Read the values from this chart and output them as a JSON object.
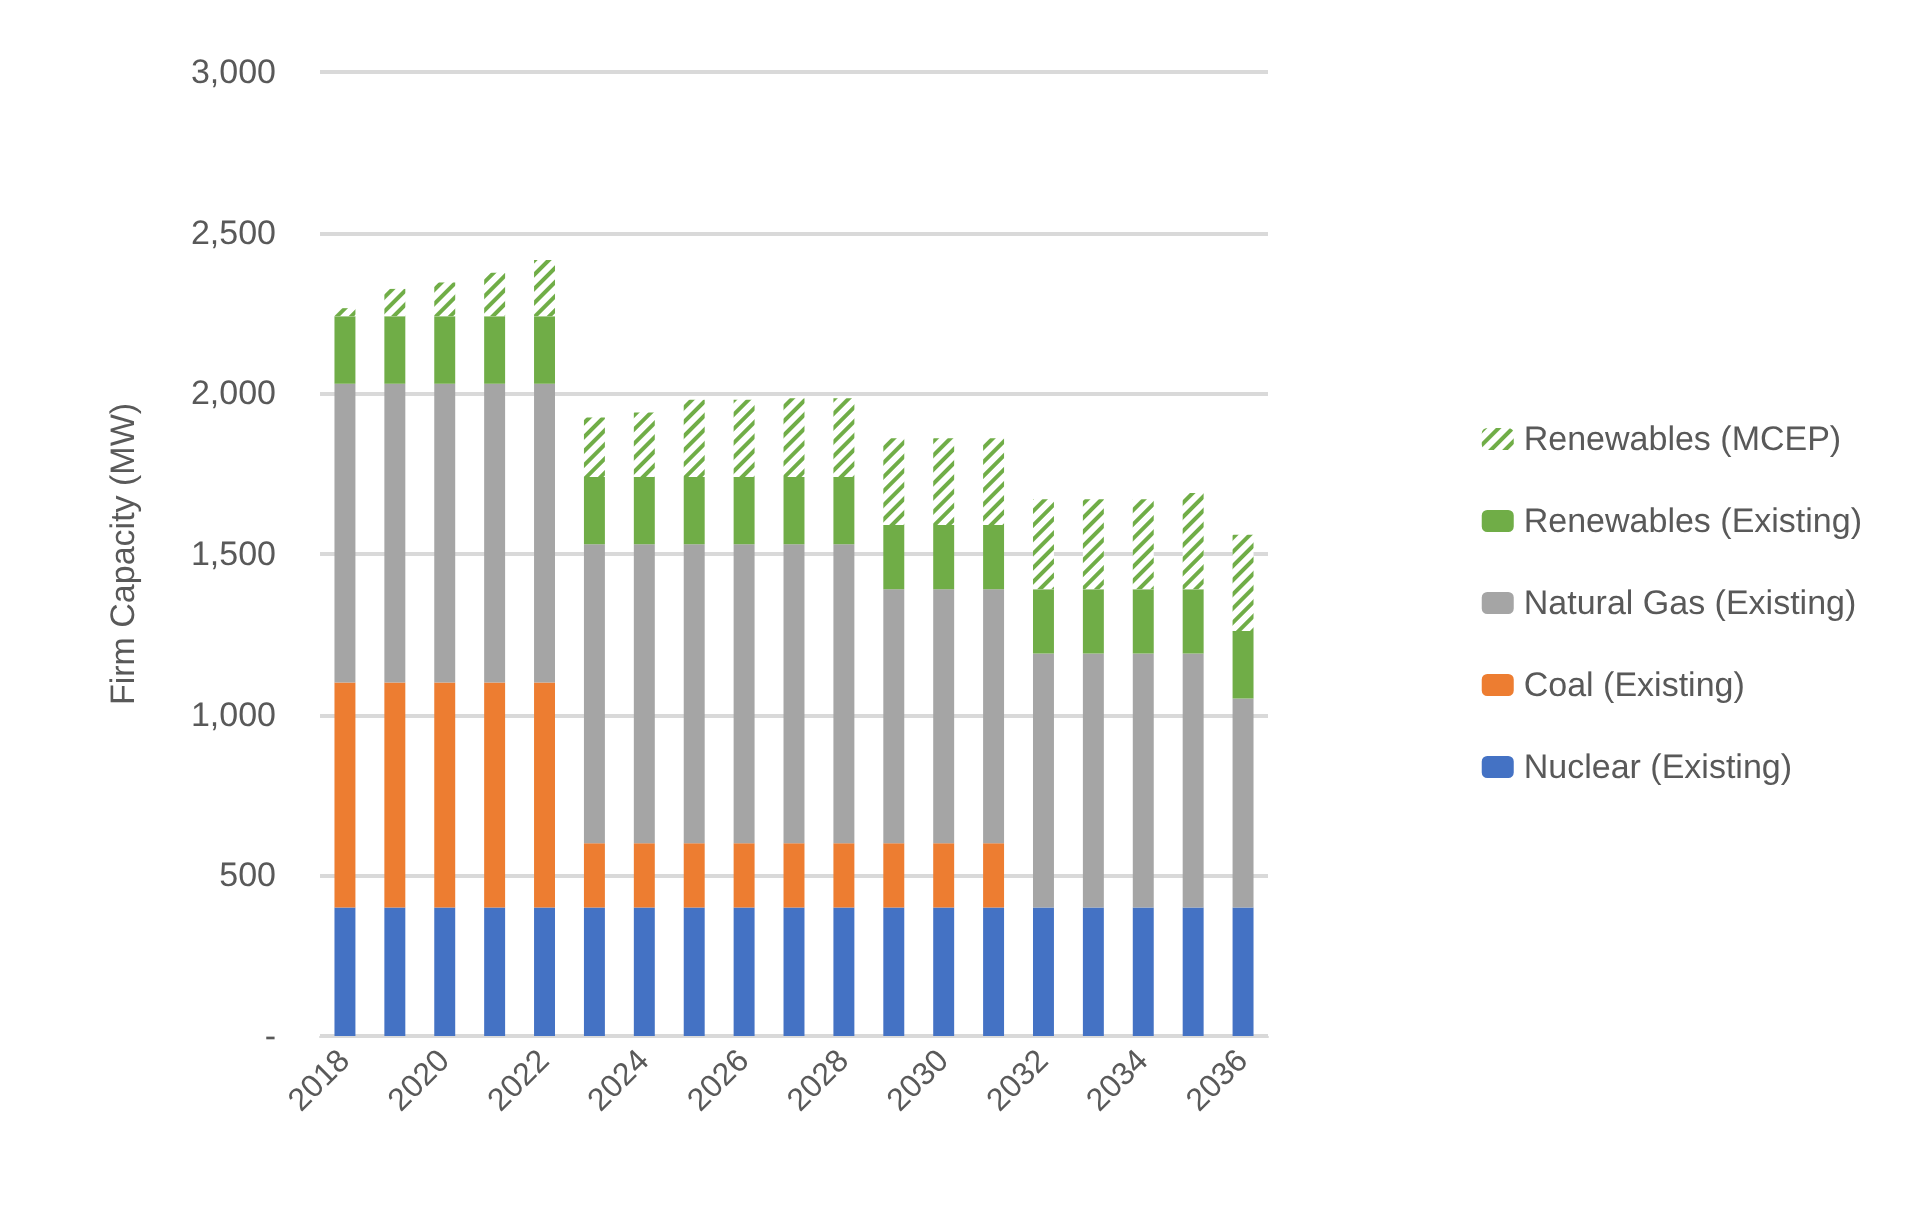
{
  "chart_data": {
    "type": "bar",
    "stacked": true,
    "ylabel": "Firm Capacity (MW)",
    "categories": [
      "2018",
      null,
      "2020",
      null,
      "2022",
      null,
      "2024",
      null,
      "2026",
      null,
      "2028",
      null,
      "2030",
      null,
      "2032",
      null,
      "2034",
      null,
      "2036"
    ],
    "series": [
      {
        "name": "Nuclear (Existing)",
        "color": "#4472c4",
        "values": [
          400,
          400,
          400,
          400,
          400,
          400,
          400,
          400,
          400,
          400,
          400,
          400,
          400,
          400,
          400,
          400,
          400,
          400,
          400
        ]
      },
      {
        "name": "Coal (Existing)",
        "color": "#ed7d31",
        "values": [
          700,
          700,
          700,
          700,
          700,
          200,
          200,
          200,
          200,
          200,
          200,
          200,
          200,
          200,
          null,
          null,
          null,
          null,
          null
        ]
      },
      {
        "name": "Natural Gas (Existing)",
        "color": "#a5a5a5",
        "values": [
          930,
          930,
          930,
          930,
          930,
          930,
          930,
          930,
          930,
          930,
          930,
          790,
          790,
          790,
          790,
          790,
          790,
          790,
          650
        ]
      },
      {
        "name": "Renewables (Existing)",
        "color": "#70ad47",
        "values": [
          210,
          210,
          210,
          210,
          210,
          210,
          210,
          210,
          210,
          210,
          210,
          200,
          200,
          200,
          200,
          200,
          200,
          200,
          210
        ]
      },
      {
        "name": "Renewables (MCEP)",
        "color": "#70ad47",
        "values": [
          25,
          85,
          105,
          135,
          175,
          185,
          200,
          240,
          240,
          245,
          245,
          270,
          270,
          270,
          280,
          280,
          280,
          300,
          300
        ]
      }
    ],
    "ylim": [
      0,
      3000
    ],
    "yticks": [
      {
        "value": 0,
        "label": "-"
      },
      500,
      {
        "value": 1000,
        "label": "1,000"
      },
      {
        "value": 1500,
        "label": "1,500"
      },
      {
        "value": 2000,
        "label": "2,000"
      },
      {
        "value": 2500,
        "label": "2,500"
      },
      {
        "value": 3000,
        "label": "3,000"
      }
    ],
    "grid": "y",
    "legend": "right"
  }
}
